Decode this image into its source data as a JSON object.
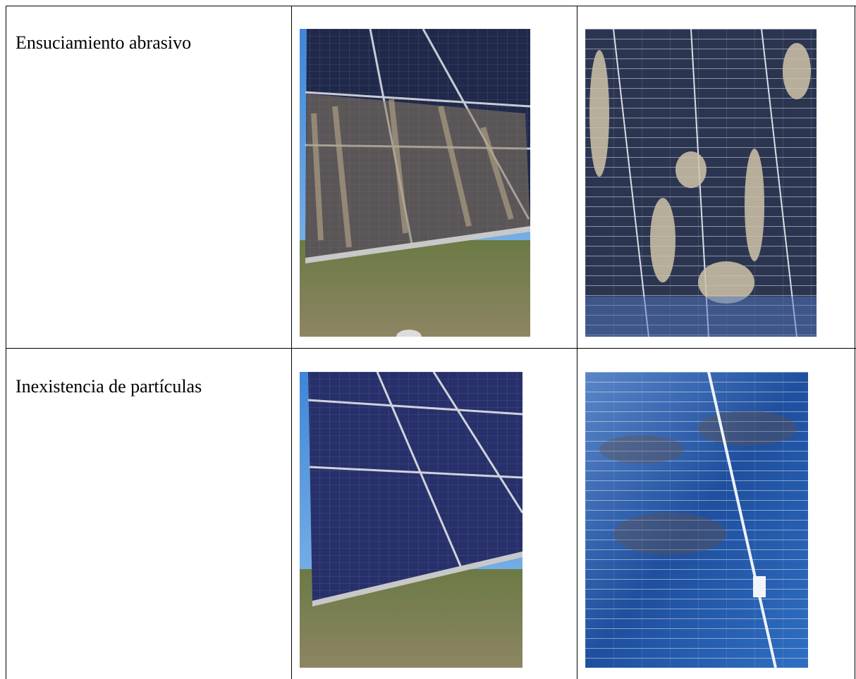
{
  "table": {
    "rows": [
      {
        "label": "Ensuciamiento abrasivo"
      },
      {
        "label": "Inexistencia de partículas"
      }
    ]
  }
}
